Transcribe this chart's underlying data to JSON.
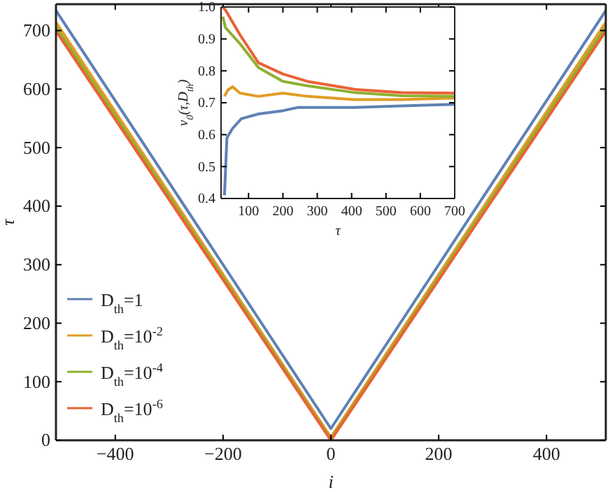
{
  "chart_data": [
    {
      "type": "line",
      "xlabel": "i",
      "ylabel": "τ",
      "xlim": [
        -510,
        510
      ],
      "ylim": [
        0,
        745
      ],
      "xticks": [
        {
          "value": -400,
          "label": "−400"
        },
        {
          "value": -200,
          "label": "−200"
        },
        0,
        200,
        400
      ],
      "yticks": [
        0,
        100,
        200,
        300,
        400,
        500,
        600,
        700
      ],
      "grid": false,
      "legend": "bottom left",
      "marker": "none",
      "line_style": "solid",
      "series": [
        {
          "name": "D$_{th}$=1",
          "color": "#5e81b5",
          "x": [
            -510,
            -400,
            -300,
            -200,
            -100,
            0,
            100,
            200,
            300,
            400,
            510
          ],
          "values": [
            734,
            580,
            440,
            300,
            160,
            20,
            160,
            300,
            440,
            580,
            734
          ]
        },
        {
          "name": "D$_{th}$=10$^{-2}$",
          "color": "#e19c24",
          "x": [
            -510,
            -400,
            -300,
            -200,
            -100,
            0,
            100,
            200,
            300,
            400,
            510
          ],
          "values": [
            714,
            561,
            422,
            283,
            144,
            5,
            144,
            283,
            422,
            561,
            714
          ]
        },
        {
          "name": "D$_{th}$=10$^{-4}$",
          "color": "#8fb032",
          "x": [
            -510,
            -400,
            -300,
            -200,
            -100,
            0,
            100,
            200,
            300,
            400,
            510
          ],
          "values": [
            706,
            554,
            416,
            278,
            140,
            2,
            140,
            278,
            416,
            554,
            706
          ]
        },
        {
          "name": "D$_{th}$=10$^{-6}$",
          "color": "#eb6235",
          "x": [
            -510,
            -400,
            -300,
            -200,
            -100,
            0,
            100,
            200,
            300,
            400,
            510
          ],
          "values": [
            699,
            548,
            411,
            274,
            137,
            0,
            137,
            274,
            411,
            548,
            699
          ]
        }
      ]
    },
    {
      "type": "line",
      "xlabel": "τ",
      "ylabel": "v$_{0}$(τ,D$_{th}$)",
      "xlim": [
        20,
        700
      ],
      "ylim": [
        0.4,
        1.0
      ],
      "xticks": [
        100,
        200,
        300,
        400,
        500,
        600,
        700
      ],
      "yticks": [
        {
          "value": 0.4,
          "label": "0.4"
        },
        {
          "value": 0.5,
          "label": "0.5"
        },
        {
          "value": 0.6,
          "label": "0.6"
        },
        {
          "value": 0.7,
          "label": "0.7"
        },
        {
          "value": 0.8,
          "label": "0.8"
        },
        {
          "value": 0.9,
          "label": "0.9"
        },
        {
          "value": 1.0,
          "label": "1.0"
        }
      ],
      "grid": false,
      "marker": "none",
      "line_style": "solid",
      "series": [
        {
          "color": "#5e81b5",
          "x": [
            30,
            37,
            54,
            79,
            129,
            200,
            242,
            408,
            546,
            700
          ],
          "values": [
            0.41,
            0.59,
            0.62,
            0.65,
            0.665,
            0.675,
            0.685,
            0.685,
            0.69,
            0.695
          ]
        },
        {
          "color": "#e19c24",
          "x": [
            30,
            40,
            54,
            75,
            129,
            200,
            271,
            408,
            546,
            700
          ],
          "values": [
            0.72,
            0.74,
            0.75,
            0.73,
            0.72,
            0.73,
            0.72,
            0.71,
            0.71,
            0.715
          ]
        },
        {
          "color": "#8fb032",
          "x": [
            25,
            33,
            75,
            129,
            200,
            271,
            408,
            546,
            700
          ],
          "values": [
            0.97,
            0.935,
            0.885,
            0.81,
            0.767,
            0.753,
            0.732,
            0.722,
            0.72
          ]
        },
        {
          "color": "#eb6235",
          "x": [
            25,
            33,
            75,
            129,
            200,
            271,
            408,
            546,
            700
          ],
          "values": [
            1.0,
            0.99,
            0.913,
            0.825,
            0.79,
            0.767,
            0.742,
            0.732,
            0.73
          ]
        }
      ]
    }
  ]
}
